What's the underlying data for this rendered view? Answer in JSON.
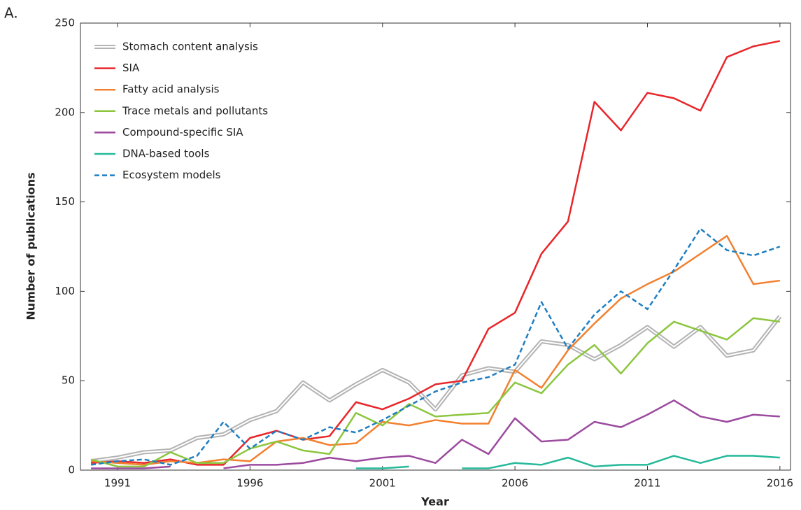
{
  "chart_data": {
    "type": "line",
    "panel_label": "A.",
    "x_label": "Year",
    "y_label": "Number of publications",
    "x": [
      1990,
      1991,
      1992,
      1993,
      1994,
      1995,
      1996,
      1997,
      1998,
      1999,
      2000,
      2001,
      2002,
      2003,
      2004,
      2005,
      2006,
      2007,
      2008,
      2009,
      2010,
      2011,
      2012,
      2013,
      2014,
      2015,
      2016
    ],
    "xlim": [
      1989.6,
      2016.4
    ],
    "xticks": [
      1991,
      1996,
      2001,
      2006,
      2011,
      2016
    ],
    "ylim": [
      0,
      250
    ],
    "yticks": [
      0,
      50,
      100,
      150,
      200,
      250
    ],
    "grid": false,
    "legend": "upper left",
    "series": [
      {
        "name": "Stomach content analysis",
        "color": "#b3b3b3",
        "linestyle": "double",
        "values": [
          5,
          7,
          10,
          11,
          18,
          20,
          28,
          33,
          49,
          39,
          48,
          56,
          49,
          34,
          53,
          57,
          55,
          72,
          70,
          62,
          70,
          80,
          69,
          80,
          64,
          67,
          86
        ]
      },
      {
        "name": "SIA",
        "color": "#e8262a",
        "linestyle": "solid",
        "values": [
          4,
          5,
          4,
          6,
          3,
          3,
          18,
          22,
          17,
          19,
          38,
          34,
          40,
          48,
          50,
          79,
          88,
          121,
          139,
          206,
          190,
          211,
          208,
          201,
          231,
          237,
          240
        ]
      },
      {
        "name": "Fatty acid analysis",
        "color": "#f2802f",
        "linestyle": "solid",
        "values": [
          5,
          4,
          3,
          5,
          4,
          6,
          5,
          16,
          18,
          14,
          15,
          27,
          25,
          28,
          26,
          26,
          56,
          46,
          67,
          82,
          96,
          104,
          111,
          121,
          131,
          104,
          106
        ]
      },
      {
        "name": "Trace metals and pollutants",
        "color": "#8cc63f",
        "linestyle": "solid",
        "values": [
          6,
          2,
          2,
          10,
          4,
          4,
          12,
          16,
          11,
          9,
          32,
          25,
          37,
          30,
          31,
          32,
          49,
          43,
          59,
          70,
          54,
          71,
          83,
          78,
          73,
          85,
          83
        ]
      },
      {
        "name": "Compound-specific SIA",
        "color": "#9c4a9f",
        "linestyle": "solid",
        "values": [
          1,
          1,
          1,
          2,
          null,
          1,
          3,
          3,
          4,
          7,
          5,
          7,
          8,
          4,
          17,
          9,
          29,
          16,
          17,
          27,
          24,
          31,
          39,
          30,
          27,
          31,
          30
        ]
      },
      {
        "name": "DNA-based tools",
        "color": "#26b99a",
        "linestyle": "solid",
        "values": [
          null,
          null,
          null,
          null,
          null,
          null,
          null,
          null,
          null,
          null,
          1,
          1,
          2,
          null,
          1,
          1,
          4,
          3,
          7,
          2,
          3,
          3,
          8,
          4,
          8,
          8,
          7
        ]
      },
      {
        "name": "Ecosystem models",
        "color": "#1f7fc1",
        "linestyle": "dashed",
        "values": [
          3,
          5,
          6,
          3,
          8,
          27,
          12,
          22,
          17,
          24,
          21,
          28,
          36,
          44,
          49,
          52,
          59,
          94,
          68,
          87,
          100,
          90,
          112,
          135,
          123,
          120,
          125
        ]
      }
    ]
  }
}
